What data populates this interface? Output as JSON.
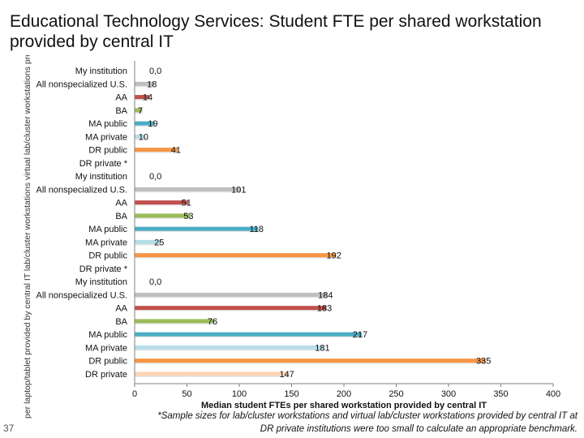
{
  "title": "Educational Technology Services: Student FTE per shared workstation provided by central IT",
  "slide_number": "37",
  "y_axis_label": "per laptop/tablet provided by central IT lab/cluster workstations virtual lab/cluster workstations provi",
  "footnote_lines": [
    "*Sample sizes for lab/cluster workstations and virtual lab/cluster workstations provided by central IT at",
    "DR private institutions were too small to calculate an appropriate benchmark."
  ],
  "chart_data": {
    "type": "bar",
    "orientation": "horizontal",
    "xlabel": "Median student FTEs per shared workstation provided by central IT",
    "xlim": [
      0,
      400
    ],
    "xticks": [
      0,
      50,
      100,
      150,
      200,
      250,
      300,
      350,
      400
    ],
    "grid": false,
    "legend": "none",
    "groups": [
      {
        "name": "virtual lab/cluster workstations provided by central IT",
        "bars": [
          {
            "category": "My institution",
            "value": 0,
            "label": "0,0",
            "color": "#ffffff"
          },
          {
            "category": "All nonspecialized U.S.",
            "value": 18,
            "label": "18",
            "color": "#bfbfbf"
          },
          {
            "category": "AA",
            "value": 14,
            "label": "14",
            "color": "#c0504d"
          },
          {
            "category": "BA",
            "value": 7,
            "label": "7",
            "color": "#9bbb59"
          },
          {
            "category": "MA public",
            "value": 19,
            "label": "19",
            "color": "#4bacc6"
          },
          {
            "category": "MA private",
            "value": 10,
            "label": "10",
            "color": "#b7dee8"
          },
          {
            "category": "DR public",
            "value": 41,
            "label": "41",
            "color": "#f79646"
          },
          {
            "category": "DR private *",
            "value": null,
            "label": "",
            "color": "#fcd5b4"
          }
        ]
      },
      {
        "name": "lab/cluster workstations provided by central IT",
        "bars": [
          {
            "category": "My institution",
            "value": 0,
            "label": "0,0",
            "color": "#ffffff"
          },
          {
            "category": "All nonspecialized U.S.",
            "value": 101,
            "label": "101",
            "color": "#bfbfbf"
          },
          {
            "category": "AA",
            "value": 51,
            "label": "51",
            "color": "#c0504d"
          },
          {
            "category": "BA",
            "value": 53,
            "label": "53",
            "color": "#9bbb59"
          },
          {
            "category": "MA public",
            "value": 118,
            "label": "118",
            "color": "#4bacc6"
          },
          {
            "category": "MA private",
            "value": 25,
            "label": "25",
            "color": "#b7dee8"
          },
          {
            "category": "DR public",
            "value": 192,
            "label": "192",
            "color": "#f79646"
          },
          {
            "category": "DR private *",
            "value": null,
            "label": "",
            "color": "#fcd5b4"
          }
        ]
      },
      {
        "name": "per laptop/tablet provided by central IT",
        "bars": [
          {
            "category": "My institution",
            "value": 0,
            "label": "0,0",
            "color": "#ffffff"
          },
          {
            "category": "All nonspecialized U.S.",
            "value": 184,
            "label": "184",
            "color": "#bfbfbf"
          },
          {
            "category": "AA",
            "value": 183,
            "label": "183",
            "color": "#c0504d"
          },
          {
            "category": "BA",
            "value": 76,
            "label": "76",
            "color": "#9bbb59"
          },
          {
            "category": "MA public",
            "value": 217,
            "label": "217",
            "color": "#4bacc6"
          },
          {
            "category": "MA private",
            "value": 181,
            "label": "181",
            "color": "#b7dee8"
          },
          {
            "category": "DR public",
            "value": 335,
            "label": "335",
            "color": "#f79646"
          },
          {
            "category": "DR private",
            "value": 147,
            "label": "147",
            "color": "#fcd5b4"
          }
        ]
      }
    ]
  }
}
